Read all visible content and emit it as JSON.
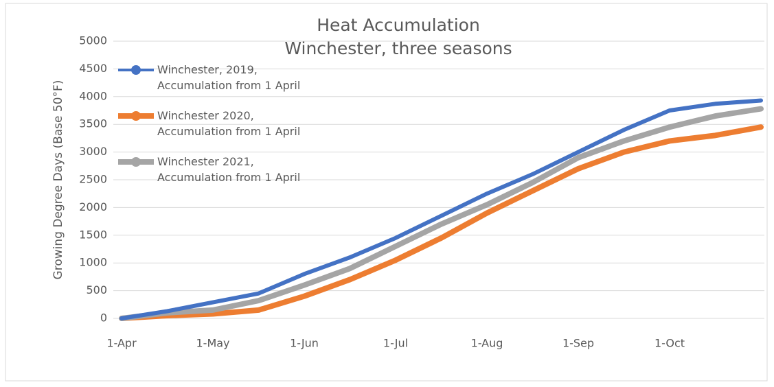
{
  "chart_data": {
    "type": "line",
    "title": "Heat Accumulation",
    "subtitle": "Winchester, three seasons",
    "y_label": "Growing Degree Days (Base 50°F)",
    "categories": [
      "1-Apr",
      null,
      "1-May",
      null,
      "1-Jun",
      null,
      "1-Jul",
      null,
      "1-Aug",
      null,
      "1-Sep",
      null,
      "1-Oct",
      null,
      null
    ],
    "series": [
      {
        "name": "Winchester, 2019, Accumulation from 1 April",
        "color": "#4472c4",
        "values": [
          0,
          130,
          290,
          450,
          800,
          1100,
          1450,
          1850,
          2250,
          2600,
          3000,
          3400,
          3750,
          3870,
          3930
        ]
      },
      {
        "name": "Winchester 2020, Accumulation from 1 April",
        "color": "#ed7d31",
        "values": [
          0,
          50,
          80,
          150,
          400,
          700,
          1050,
          1450,
          1900,
          2300,
          2700,
          3000,
          3200,
          3300,
          3450
        ]
      },
      {
        "name": "Winchester 2021, Accumulation from 1 April",
        "color": "#a5a5a5",
        "values": [
          0,
          100,
          150,
          320,
          600,
          900,
          1300,
          1700,
          2050,
          2450,
          2900,
          3200,
          3450,
          3650,
          3780
        ]
      }
    ],
    "ylim": [
      0,
      5000
    ],
    "yticks": [
      0,
      500,
      1000,
      1500,
      2000,
      2500,
      3000,
      3500,
      4000,
      4500,
      5000
    ],
    "grid": true,
    "legend": "left"
  }
}
